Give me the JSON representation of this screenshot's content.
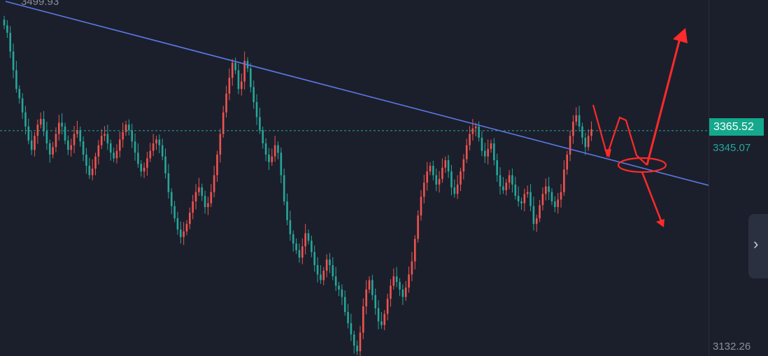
{
  "colors": {
    "background": "#1b1f2b",
    "up": "#ef5350",
    "down": "#26a69a",
    "trendline": "#5b79e8",
    "current_price_line": "#26a69a",
    "annotation": "#ff2a2a"
  },
  "price_axis": {
    "top_label": "3499.93",
    "current_price": "3365.52",
    "secondary_price": "3345.07",
    "bottom_label": "3132.26"
  },
  "nav": {
    "icon": "chevron-right-icon",
    "glyph": "›"
  },
  "chart_data": {
    "type": "candlestick",
    "ylim": [
      3125,
      3505
    ],
    "grid": false,
    "current_price": 3365.52,
    "trendline": {
      "from": 3505,
      "to": 3325
    },
    "annotations": [
      "upward-arrow",
      "downward-arrow",
      "retest-zigzag",
      "retest-ellipse"
    ],
    "closes": [
      3478,
      3470,
      3450,
      3430,
      3410,
      3400,
      3385,
      3370,
      3355,
      3345,
      3360,
      3372,
      3378,
      3365,
      3352,
      3340,
      3348,
      3362,
      3374,
      3370,
      3355,
      3345,
      3350,
      3362,
      3366,
      3354,
      3340,
      3328,
      3318,
      3325,
      3338,
      3350,
      3360,
      3362,
      3352,
      3342,
      3336,
      3344,
      3356,
      3364,
      3372,
      3366,
      3354,
      3342,
      3330,
      3322,
      3326,
      3336,
      3344,
      3352,
      3356,
      3350,
      3338,
      3320,
      3300,
      3285,
      3272,
      3260,
      3252,
      3258,
      3266,
      3278,
      3290,
      3300,
      3305,
      3296,
      3284,
      3288,
      3300,
      3318,
      3340,
      3362,
      3385,
      3405,
      3422,
      3438,
      3430,
      3410,
      3418,
      3440,
      3432,
      3412,
      3396,
      3380,
      3366,
      3352,
      3340,
      3332,
      3338,
      3350,
      3342,
      3318,
      3290,
      3270,
      3255,
      3245,
      3238,
      3230,
      3242,
      3256,
      3248,
      3236,
      3222,
      3212,
      3206,
      3216,
      3228,
      3222,
      3210,
      3200,
      3196,
      3188,
      3172,
      3160,
      3148,
      3136,
      3130,
      3150,
      3178,
      3196,
      3206,
      3190,
      3176,
      3162,
      3158,
      3170,
      3186,
      3200,
      3210,
      3204,
      3196,
      3188,
      3198,
      3212,
      3226,
      3250,
      3275,
      3295,
      3310,
      3322,
      3328,
      3318,
      3308,
      3314,
      3326,
      3334,
      3322,
      3305,
      3298,
      3308,
      3322,
      3335,
      3350,
      3362,
      3368,
      3370,
      3358,
      3344,
      3338,
      3346,
      3352,
      3334,
      3318,
      3306,
      3302,
      3310,
      3318,
      3308,
      3296,
      3290,
      3288,
      3298,
      3300,
      3285,
      3266,
      3272,
      3286,
      3298,
      3306,
      3300,
      3290,
      3284,
      3292,
      3300,
      3324,
      3340,
      3360,
      3375,
      3382,
      3370,
      3358,
      3348,
      3360,
      3367
    ]
  }
}
